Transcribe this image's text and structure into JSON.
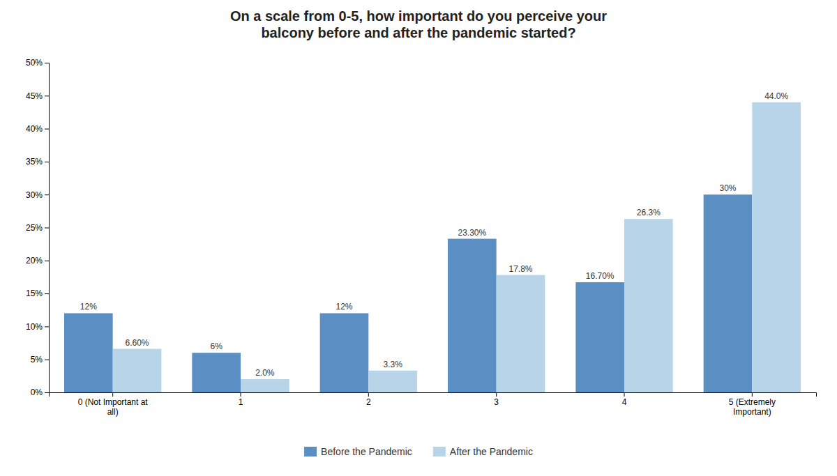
{
  "chart_data": {
    "type": "bar",
    "title": "On a scale from 0-5, how important do you perceive your\nbalcony before and after the pandemic started?",
    "categories": [
      "0 (Not Important at\nall)",
      "1",
      "2",
      "3",
      "4",
      "5 (Extremely\nImportant)"
    ],
    "series": [
      {
        "name": "Before the Pandemic",
        "color": "#5b8fc4",
        "values": [
          12.0,
          6.0,
          12.0,
          23.3,
          16.7,
          30.0
        ],
        "value_labels": [
          "12%",
          "6%",
          "12%",
          "23.30%",
          "16.70%",
          "30%"
        ]
      },
      {
        "name": "After the Pandemic",
        "color": "#b8d4e8",
        "values": [
          6.6,
          2.0,
          3.3,
          17.8,
          26.3,
          44.0
        ],
        "value_labels": [
          "6.60%",
          "2.0%",
          "3.3%",
          "17.8%",
          "26.3%",
          "44.0%"
        ]
      }
    ],
    "ylim": [
      0,
      50
    ],
    "yticks": [
      {
        "value": 0,
        "label": "0%"
      },
      {
        "value": 5,
        "label": "5%"
      },
      {
        "value": 10,
        "label": "10%"
      },
      {
        "value": 15,
        "label": "15%"
      },
      {
        "value": 20,
        "label": "20%"
      },
      {
        "value": 25,
        "label": "25%"
      },
      {
        "value": 30,
        "label": "30%"
      },
      {
        "value": 35,
        "label": "35%"
      },
      {
        "value": 40,
        "label": "40%"
      },
      {
        "value": 45,
        "label": "45%"
      },
      {
        "value": 50,
        "label": "50%"
      }
    ],
    "grid": false,
    "legend": "lower center",
    "data_labels": true
  }
}
